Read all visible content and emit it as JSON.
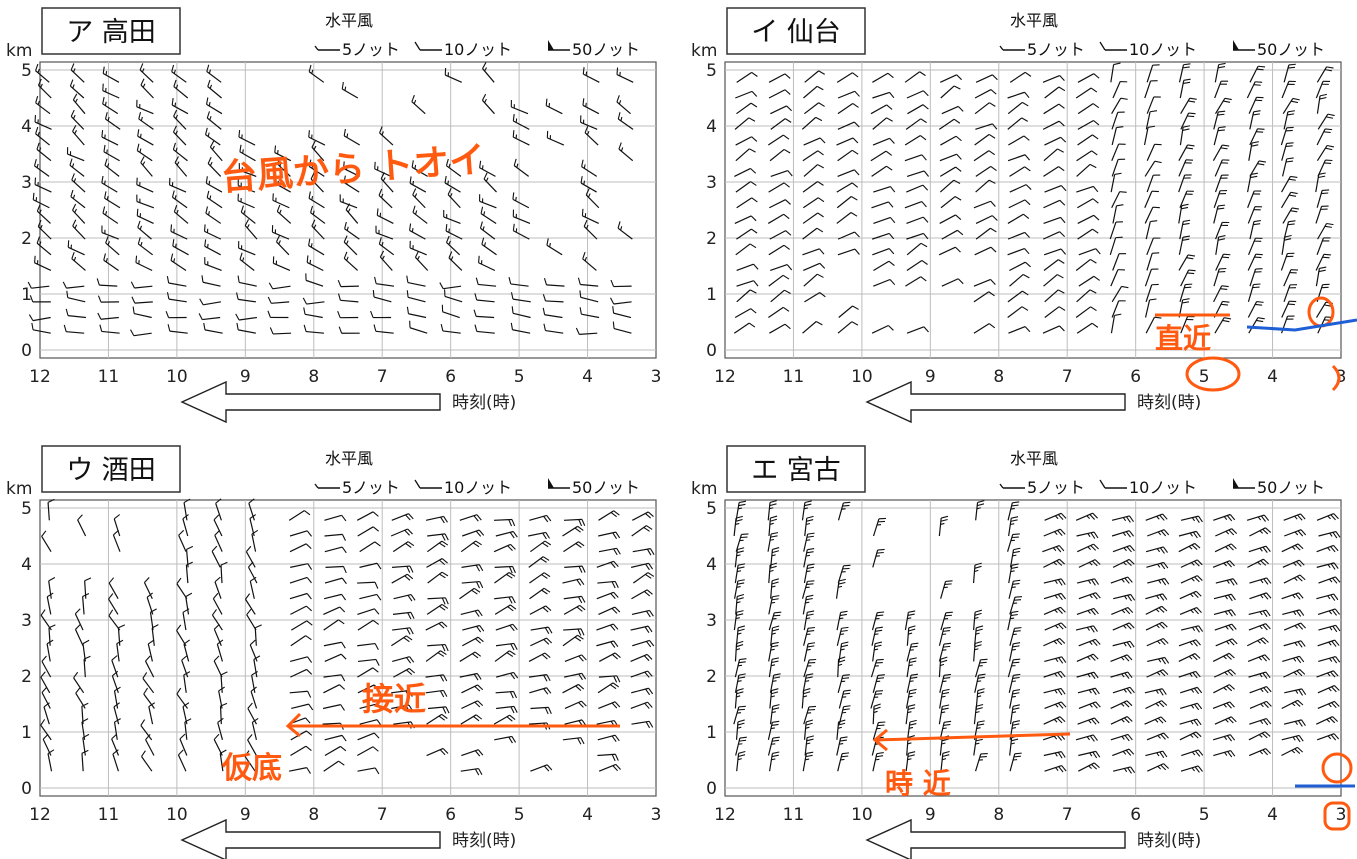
{
  "colors": {
    "annotation_orange": "#ff5a10",
    "annotation_blue": "#1f5fd6",
    "grid": "#bdbdbd",
    "barb": "#111111"
  },
  "chart_data": [
    {
      "type": "wind-barb-time-height",
      "id": "takada",
      "title": "ア 高田",
      "legend_title": "水平風",
      "legend": [
        "5ノット",
        "10ノット",
        "50ノット"
      ],
      "y_unit": "km",
      "x_label": "時刻(時)",
      "x_ticks": [
        "12",
        "11",
        "10",
        "9",
        "8",
        "7",
        "6",
        "5",
        "4",
        "3"
      ],
      "y_ticks": [
        "0",
        "1",
        "2",
        "3",
        "4",
        "5"
      ],
      "x_range": [
        12,
        3
      ],
      "y_range": [
        0,
        5
      ],
      "annotations": [
        "台風から トオイ"
      ]
    },
    {
      "type": "wind-barb-time-height",
      "id": "sendai",
      "title": "イ 仙台",
      "legend_title": "水平風",
      "legend": [
        "5ノット",
        "10ノット",
        "50ノット"
      ],
      "y_unit": "km",
      "x_label": "時刻(時)",
      "x_ticks": [
        "12",
        "11",
        "10",
        "9",
        "8",
        "7",
        "6",
        "5",
        "4",
        "3"
      ],
      "y_ticks": [
        "0",
        "1",
        "2",
        "3",
        "4",
        "5"
      ],
      "x_range": [
        12,
        3
      ],
      "y_range": [
        0,
        5
      ],
      "annotations": [
        "直近"
      ]
    },
    {
      "type": "wind-barb-time-height",
      "id": "sakata",
      "title": "ウ 酒田",
      "legend_title": "水平風",
      "legend": [
        "5ノット",
        "10ノット",
        "50ノット"
      ],
      "y_unit": "km",
      "x_label": "時刻(時)",
      "x_ticks": [
        "12",
        "11",
        "10",
        "9",
        "8",
        "7",
        "6",
        "5",
        "4",
        "3"
      ],
      "y_ticks": [
        "0",
        "1",
        "2",
        "3",
        "4",
        "5"
      ],
      "x_range": [
        12,
        3
      ],
      "y_range": [
        0,
        5
      ],
      "annotations": [
        "接近",
        "仮底"
      ]
    },
    {
      "type": "wind-barb-time-height",
      "id": "miyako",
      "title": "エ 宮古",
      "legend_title": "水平風",
      "legend": [
        "5ノット",
        "10ノット",
        "50ノット"
      ],
      "y_unit": "km",
      "x_label": "時刻(時)",
      "x_ticks": [
        "12",
        "11",
        "10",
        "9",
        "8",
        "7",
        "6",
        "5",
        "4",
        "3"
      ],
      "y_ticks": [
        "0",
        "1",
        "2",
        "3",
        "4",
        "5"
      ],
      "x_range": [
        12,
        3
      ],
      "y_range": [
        0,
        5
      ],
      "annotations": [
        "時 近"
      ]
    }
  ]
}
